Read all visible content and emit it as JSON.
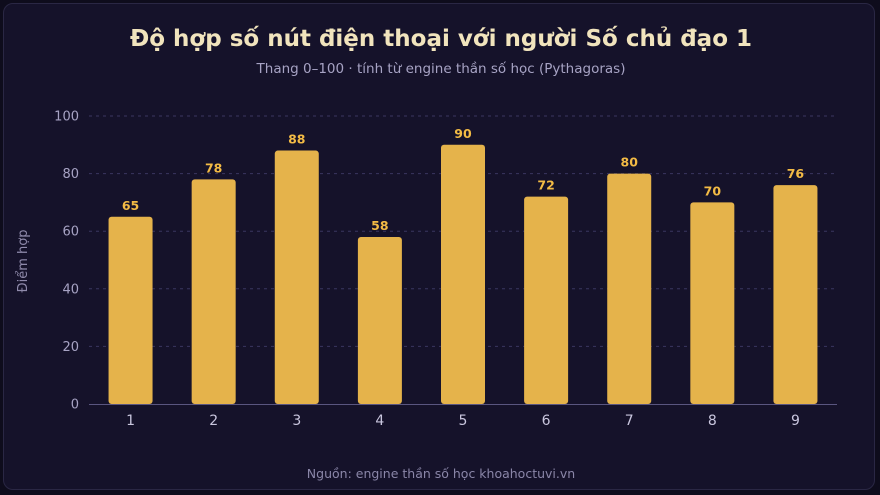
{
  "chart_data": {
    "type": "bar",
    "title": "Độ hợp số nút điện thoại với người Số chủ đạo 1",
    "subtitle": "Thang 0–100 · tính từ engine thần số học (Pythagoras)",
    "xlabel": "",
    "ylabel": "Điểm hợp",
    "categories": [
      "1",
      "2",
      "3",
      "4",
      "5",
      "6",
      "7",
      "8",
      "9"
    ],
    "values": [
      65,
      78,
      88,
      58,
      90,
      72,
      80,
      70,
      76
    ],
    "ylim": [
      0,
      100
    ],
    "yticks": [
      "0",
      "20",
      "40",
      "60",
      "80",
      "100"
    ],
    "grid": true,
    "data_labels": true,
    "colors": {
      "bar": "#e5b34b",
      "value_label": "#f3bb45",
      "title": "#f1e4bd",
      "background": "#15122a",
      "grid": "#3a3660"
    },
    "source": "Nguồn: engine thần số học khoahoctuvi.vn"
  }
}
